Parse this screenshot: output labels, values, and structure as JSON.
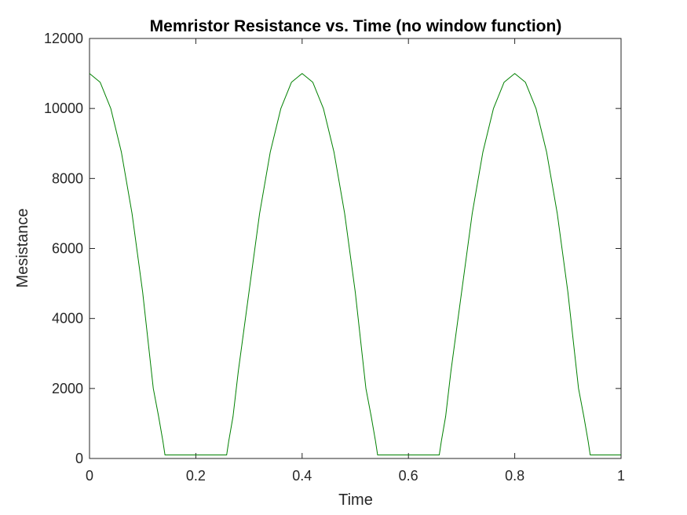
{
  "chart_data": {
    "type": "line",
    "title": "Memristor Resistance vs. Time (no window function)",
    "xlabel": "Time",
    "ylabel": "Mesistance",
    "xlim": [
      0,
      1
    ],
    "ylim": [
      0,
      12000
    ],
    "x_ticks": [
      "0",
      "0.2",
      "0.4",
      "0.6",
      "0.8",
      "1"
    ],
    "y_ticks": [
      "0",
      "2000",
      "4000",
      "6000",
      "8000",
      "10000",
      "12000"
    ],
    "grid": false,
    "legend": "none",
    "series": [
      {
        "color": "#008000",
        "x": [
          0,
          0.02,
          0.04,
          0.06,
          0.08,
          0.1,
          0.12,
          0.13,
          0.138,
          0.141,
          0.142,
          0.2,
          0.258,
          0.259,
          0.262,
          0.27,
          0.28,
          0.3,
          0.32,
          0.34,
          0.36,
          0.38,
          0.4,
          0.42,
          0.44,
          0.46,
          0.48,
          0.5,
          0.52,
          0.53,
          0.538,
          0.541,
          0.542,
          0.6,
          0.658,
          0.659,
          0.662,
          0.67,
          0.68,
          0.7,
          0.72,
          0.74,
          0.76,
          0.78,
          0.8,
          0.82,
          0.84,
          0.86,
          0.88,
          0.9,
          0.92,
          0.93,
          0.938,
          0.941,
          0.942,
          1.0
        ],
        "y": [
          11000,
          10750,
          10000,
          8750,
          7000,
          4750,
          2000,
          1200,
          500,
          200,
          100,
          100,
          100,
          200,
          500,
          1200,
          2500,
          4750,
          7000,
          8750,
          10000,
          10750,
          11000,
          10750,
          10000,
          8750,
          7000,
          4750,
          2000,
          1200,
          500,
          200,
          100,
          100,
          100,
          200,
          500,
          1200,
          2500,
          4750,
          7000,
          8750,
          10000,
          10750,
          11000,
          10750,
          10000,
          8750,
          7000,
          4750,
          2000,
          1200,
          500,
          200,
          100,
          100
        ]
      }
    ]
  }
}
